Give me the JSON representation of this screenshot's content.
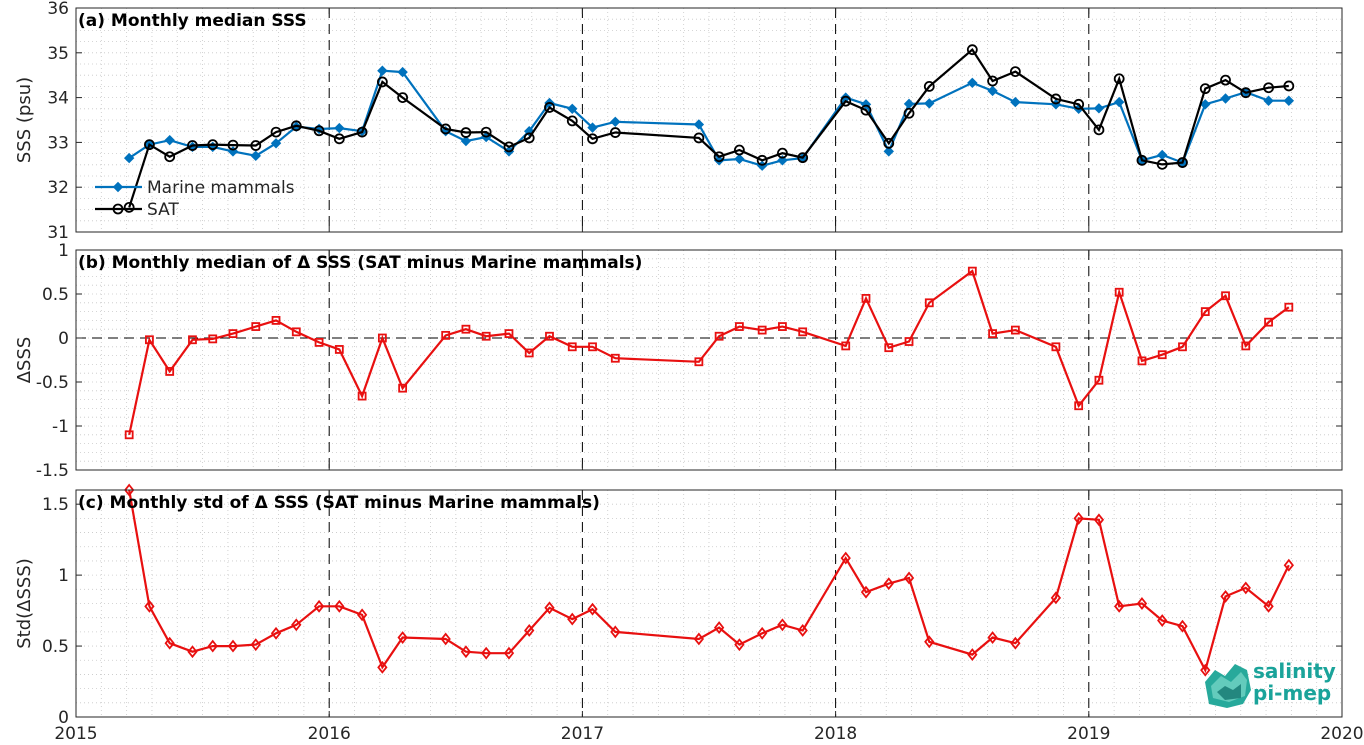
{
  "chart_data": [
    {
      "type": "line",
      "title": "(a) Monthly median SSS",
      "ylabel": "SSS (psu)",
      "xlim": [
        2015,
        2020
      ],
      "ylim": [
        31,
        36
      ],
      "yticks": [
        "31",
        "32",
        "33",
        "34",
        "35",
        "36"
      ],
      "grid": true,
      "legend_position": "bottom-left",
      "series": [
        {
          "name": "Marine mammals",
          "color": "#0072BD",
          "marker": "diamond",
          "x": [
            2015.21,
            2015.29,
            2015.37,
            2015.46,
            2015.54,
            2015.62,
            2015.71,
            2015.79,
            2015.87,
            2015.96,
            2016.04,
            2016.13,
            2016.21,
            2016.29,
            2016.46,
            2016.54,
            2016.62,
            2016.71,
            2016.79,
            2016.87,
            2016.96,
            2017.04,
            2017.13,
            2017.46,
            2017.54,
            2017.62,
            2017.71,
            2017.79,
            2017.87,
            2018.04,
            2018.12,
            2018.21,
            2018.29,
            2018.37,
            2018.54,
            2018.62,
            2018.71,
            2018.87,
            2018.96,
            2019.04,
            2019.12,
            2019.21,
            2019.29,
            2019.37,
            2019.46,
            2019.54,
            2019.62,
            2019.71,
            2019.79
          ],
          "y": [
            32.65,
            32.95,
            33.05,
            32.9,
            32.9,
            32.8,
            32.7,
            32.98,
            33.35,
            33.3,
            33.32,
            33.25,
            34.6,
            34.57,
            33.25,
            33.03,
            33.12,
            32.8,
            33.25,
            33.88,
            33.75,
            33.33,
            33.46,
            33.4,
            32.6,
            32.63,
            32.48,
            32.6,
            32.65,
            34.0,
            33.85,
            32.8,
            33.86,
            33.87,
            34.33,
            34.15,
            33.9,
            33.85,
            33.75,
            33.76,
            33.9,
            32.6,
            32.72,
            32.55,
            33.85,
            33.98,
            34.12,
            33.93,
            33.93
          ]
        },
        {
          "name": "SAT",
          "color": "#000000",
          "marker": "circle",
          "x": [
            2015.21,
            2015.29,
            2015.37,
            2015.46,
            2015.54,
            2015.62,
            2015.71,
            2015.79,
            2015.87,
            2015.96,
            2016.04,
            2016.13,
            2016.21,
            2016.29,
            2016.46,
            2016.54,
            2016.62,
            2016.71,
            2016.79,
            2016.87,
            2016.96,
            2017.04,
            2017.13,
            2017.46,
            2017.54,
            2017.62,
            2017.71,
            2017.79,
            2017.87,
            2018.04,
            2018.12,
            2018.21,
            2018.29,
            2018.37,
            2018.54,
            2018.62,
            2018.71,
            2018.87,
            2018.96,
            2019.04,
            2019.12,
            2019.21,
            2019.29,
            2019.37,
            2019.46,
            2019.54,
            2019.62,
            2019.71,
            2019.79
          ],
          "y": [
            31.55,
            32.95,
            32.68,
            32.93,
            32.95,
            32.94,
            32.93,
            33.23,
            33.37,
            33.26,
            33.08,
            33.23,
            34.35,
            34.0,
            33.3,
            33.22,
            33.23,
            32.9,
            33.1,
            33.78,
            33.48,
            33.08,
            33.22,
            33.1,
            32.68,
            32.83,
            32.6,
            32.76,
            32.66,
            33.92,
            33.72,
            32.98,
            33.65,
            34.25,
            35.07,
            34.37,
            34.58,
            33.97,
            33.85,
            33.28,
            34.42,
            32.6,
            32.51,
            32.55,
            34.2,
            34.39,
            34.11,
            34.22,
            34.26
          ]
        }
      ]
    },
    {
      "type": "line",
      "title": "(b) Monthly median of Δ SSS (SAT minus Marine mammals)",
      "ylabel": "ΔSSS",
      "xlim": [
        2015,
        2020
      ],
      "ylim": [
        -1.5,
        1
      ],
      "yticks": [
        "-1.5",
        "-1",
        "-0.5",
        "0",
        "0.5",
        "1"
      ],
      "grid": true,
      "zero_line": "dashed",
      "series": [
        {
          "color": "#E81010",
          "marker": "square",
          "x": [
            2015.21,
            2015.29,
            2015.37,
            2015.46,
            2015.54,
            2015.62,
            2015.71,
            2015.79,
            2015.87,
            2015.96,
            2016.04,
            2016.13,
            2016.21,
            2016.29,
            2016.46,
            2016.54,
            2016.62,
            2016.71,
            2016.79,
            2016.87,
            2016.96,
            2017.04,
            2017.13,
            2017.46,
            2017.54,
            2017.62,
            2017.71,
            2017.79,
            2017.87,
            2018.04,
            2018.12,
            2018.21,
            2018.29,
            2018.37,
            2018.54,
            2018.62,
            2018.71,
            2018.87,
            2018.96,
            2019.04,
            2019.12,
            2019.21,
            2019.29,
            2019.37,
            2019.46,
            2019.54,
            2019.62,
            2019.71,
            2019.79
          ],
          "y": [
            -1.1,
            -0.02,
            -0.38,
            -0.02,
            -0.01,
            0.05,
            0.13,
            0.2,
            0.07,
            -0.05,
            -0.13,
            -0.66,
            0.0,
            -0.57,
            0.03,
            0.1,
            0.02,
            0.05,
            -0.17,
            0.02,
            -0.1,
            -0.1,
            -0.23,
            -0.27,
            0.02,
            0.13,
            0.09,
            0.13,
            0.07,
            -0.09,
            0.45,
            -0.11,
            -0.04,
            0.4,
            0.76,
            0.05,
            0.09,
            -0.1,
            -0.77,
            -0.48,
            0.52,
            -0.26,
            -0.19,
            -0.1,
            0.3,
            0.48,
            -0.09,
            0.18,
            0.35
          ]
        }
      ]
    },
    {
      "type": "line",
      "title": "(c) Monthly std of Δ SSS (SAT minus Marine mammals)",
      "ylabel": "Std(ΔSSS)",
      "xlabel_ticks": [
        "2015",
        "2016",
        "2017",
        "2018",
        "2019",
        "2020"
      ],
      "xlim": [
        2015,
        2020
      ],
      "ylim": [
        0,
        1.6
      ],
      "yticks": [
        "0",
        "0.5",
        "1",
        "1.5"
      ],
      "grid": true,
      "series": [
        {
          "color": "#E81010",
          "marker": "diamond-open",
          "x": [
            2015.21,
            2015.29,
            2015.37,
            2015.46,
            2015.54,
            2015.62,
            2015.71,
            2015.79,
            2015.87,
            2015.96,
            2016.04,
            2016.13,
            2016.21,
            2016.29,
            2016.46,
            2016.54,
            2016.62,
            2016.71,
            2016.79,
            2016.87,
            2016.96,
            2017.04,
            2017.13,
            2017.46,
            2017.54,
            2017.62,
            2017.71,
            2017.79,
            2017.87,
            2018.04,
            2018.12,
            2018.21,
            2018.29,
            2018.37,
            2018.54,
            2018.62,
            2018.71,
            2018.87,
            2018.96,
            2019.04,
            2019.12,
            2019.21,
            2019.29,
            2019.37,
            2019.46,
            2019.54,
            2019.62,
            2019.71,
            2019.79
          ],
          "y": [
            1.6,
            0.78,
            0.52,
            0.46,
            0.5,
            0.5,
            0.51,
            0.59,
            0.65,
            0.78,
            0.78,
            0.72,
            0.35,
            0.56,
            0.55,
            0.46,
            0.45,
            0.45,
            0.61,
            0.77,
            0.69,
            0.76,
            0.6,
            0.55,
            0.63,
            0.51,
            0.59,
            0.65,
            0.61,
            1.12,
            0.88,
            0.94,
            0.98,
            0.53,
            0.44,
            0.56,
            0.52,
            0.84,
            1.4,
            1.39,
            0.78,
            0.8,
            0.68,
            0.64,
            0.33,
            0.85,
            0.91,
            0.78,
            1.07
          ]
        }
      ]
    }
  ],
  "logo": {
    "line1": "salinity",
    "line2": "pi-mep"
  }
}
